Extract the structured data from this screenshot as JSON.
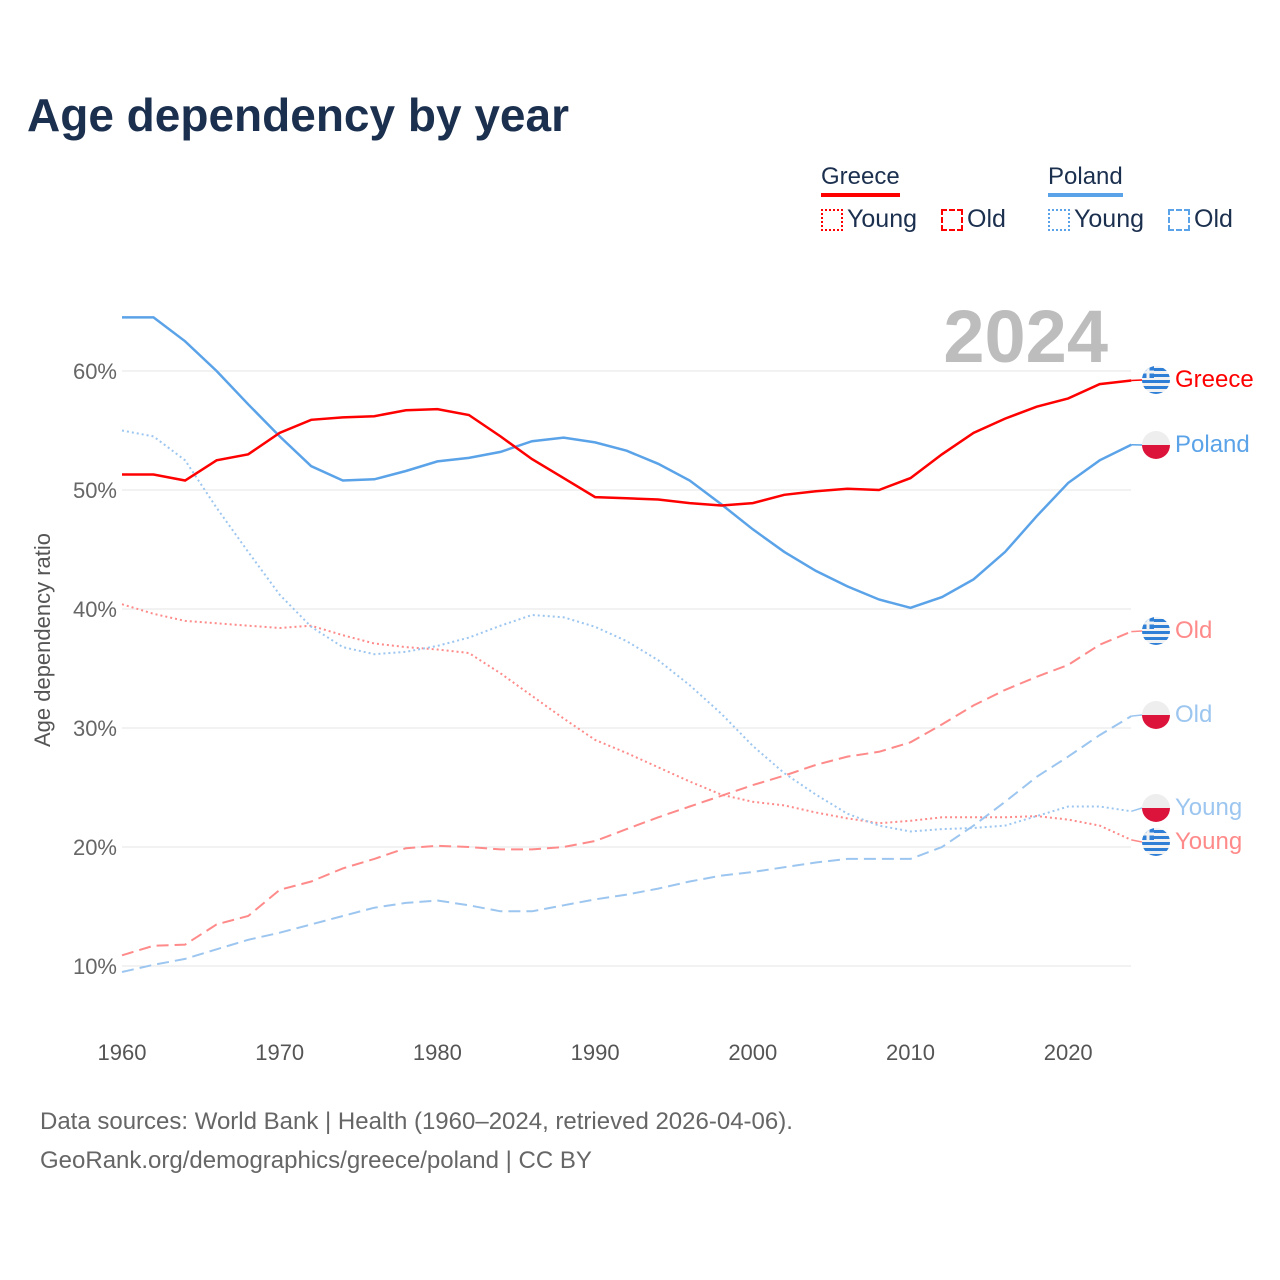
{
  "title": "Age dependency by year",
  "legend": {
    "groups": [
      {
        "name": "Greece",
        "color": "#ff0000",
        "items": [
          "Young",
          "Old"
        ]
      },
      {
        "name": "Poland",
        "color": "#5ba3e8",
        "items": [
          "Young",
          "Old"
        ]
      }
    ]
  },
  "year_watermark": "2024",
  "footer": {
    "line1": "Data sources: World Bank | Health (1960–2024, retrieved 2026-04-06).",
    "line2": "GeoRank.org/demographics/greece/poland | CC BY"
  },
  "chart_data": {
    "type": "line",
    "title": "Age dependency by year",
    "xlabel": "",
    "ylabel": "Age dependency ratio",
    "xlim": [
      1960,
      2024
    ],
    "ylim": [
      5,
      67
    ],
    "x_ticks": [
      "1960",
      "1970",
      "1980",
      "1990",
      "2000",
      "2010",
      "2020"
    ],
    "x_tick_values": [
      1960,
      1970,
      1980,
      1990,
      2000,
      2010,
      2020
    ],
    "y_ticks": [
      "10%",
      "20%",
      "30%",
      "40%",
      "50%",
      "60%"
    ],
    "y_tick_values": [
      10,
      20,
      30,
      40,
      50,
      60
    ],
    "grid": true,
    "x": [
      1960,
      1962,
      1964,
      1966,
      1968,
      1970,
      1972,
      1974,
      1976,
      1978,
      1980,
      1982,
      1984,
      1986,
      1988,
      1990,
      1992,
      1994,
      1996,
      1998,
      2000,
      2002,
      2004,
      2006,
      2008,
      2010,
      2012,
      2014,
      2016,
      2018,
      2020,
      2022,
      2024
    ],
    "series": [
      {
        "name": "Greece",
        "country": "Greece",
        "kind": "Total",
        "label": "Greece",
        "color": "#ff0000",
        "style": "solid",
        "opacity": 1,
        "values": [
          51.3,
          51.3,
          50.8,
          52.5,
          53.0,
          54.8,
          55.9,
          56.1,
          56.2,
          56.7,
          56.8,
          56.3,
          54.5,
          52.6,
          51.0,
          49.4,
          49.3,
          49.2,
          48.9,
          48.7,
          48.9,
          49.6,
          49.9,
          50.1,
          50.0,
          51.0,
          53.0,
          54.8,
          56.0,
          57.0,
          57.7,
          58.9,
          59.2
        ]
      },
      {
        "name": "Poland",
        "country": "Poland",
        "kind": "Total",
        "label": "Poland",
        "color": "#5ba3e8",
        "style": "solid",
        "opacity": 1,
        "values": [
          64.5,
          64.5,
          62.5,
          60.0,
          57.2,
          54.5,
          52.0,
          50.8,
          50.9,
          51.6,
          52.4,
          52.7,
          53.2,
          54.1,
          54.4,
          54.0,
          53.3,
          52.2,
          50.8,
          48.8,
          46.7,
          44.8,
          43.2,
          41.9,
          40.8,
          40.1,
          41.0,
          42.5,
          44.8,
          47.8,
          50.6,
          52.5,
          53.8
        ]
      },
      {
        "name": "Greece Young",
        "country": "Greece",
        "kind": "Young",
        "label": "Young",
        "color": "#ff8a8a",
        "style": "dotted",
        "opacity": 1,
        "values": [
          40.4,
          39.6,
          39.0,
          38.8,
          38.6,
          38.4,
          38.6,
          37.8,
          37.1,
          36.8,
          36.6,
          36.3,
          34.6,
          32.7,
          30.8,
          29.0,
          27.9,
          26.7,
          25.5,
          24.4,
          23.8,
          23.5,
          22.9,
          22.4,
          22.0,
          22.2,
          22.5,
          22.5,
          22.5,
          22.6,
          22.3,
          21.8,
          20.6
        ]
      },
      {
        "name": "Greece Old",
        "country": "Greece",
        "kind": "Old",
        "label": "Old",
        "color": "#ff8a8a",
        "style": "dashed",
        "opacity": 1,
        "values": [
          10.9,
          11.7,
          11.8,
          13.5,
          14.2,
          16.4,
          17.1,
          18.2,
          19.0,
          19.9,
          20.1,
          20.0,
          19.8,
          19.8,
          20.0,
          20.5,
          21.5,
          22.5,
          23.4,
          24.3,
          25.2,
          26.0,
          26.9,
          27.6,
          28.0,
          28.8,
          30.3,
          31.9,
          33.2,
          34.3,
          35.3,
          37.0,
          38.1
        ]
      },
      {
        "name": "Poland Young",
        "country": "Poland",
        "kind": "Young",
        "label": "Young",
        "color": "#9cc6f0",
        "style": "dotted",
        "opacity": 1,
        "values": [
          55.0,
          54.5,
          52.5,
          48.5,
          44.8,
          41.2,
          38.5,
          36.8,
          36.2,
          36.4,
          36.9,
          37.6,
          38.6,
          39.5,
          39.3,
          38.5,
          37.3,
          35.7,
          33.6,
          31.2,
          28.5,
          26.2,
          24.4,
          22.8,
          21.8,
          21.3,
          21.5,
          21.6,
          21.8,
          22.6,
          23.4,
          23.4,
          23.0
        ]
      },
      {
        "name": "Poland Old",
        "country": "Poland",
        "kind": "Old",
        "label": "Old",
        "color": "#9cc6f0",
        "style": "dashed",
        "opacity": 1,
        "values": [
          9.5,
          10.1,
          10.6,
          11.4,
          12.2,
          12.8,
          13.5,
          14.2,
          14.9,
          15.3,
          15.5,
          15.1,
          14.6,
          14.6,
          15.1,
          15.6,
          16.0,
          16.5,
          17.1,
          17.6,
          17.9,
          18.3,
          18.7,
          19.0,
          19.0,
          19.0,
          20.0,
          21.8,
          23.8,
          25.9,
          27.6,
          29.4,
          31.0
        ]
      }
    ],
    "legend_position": "top-right"
  }
}
